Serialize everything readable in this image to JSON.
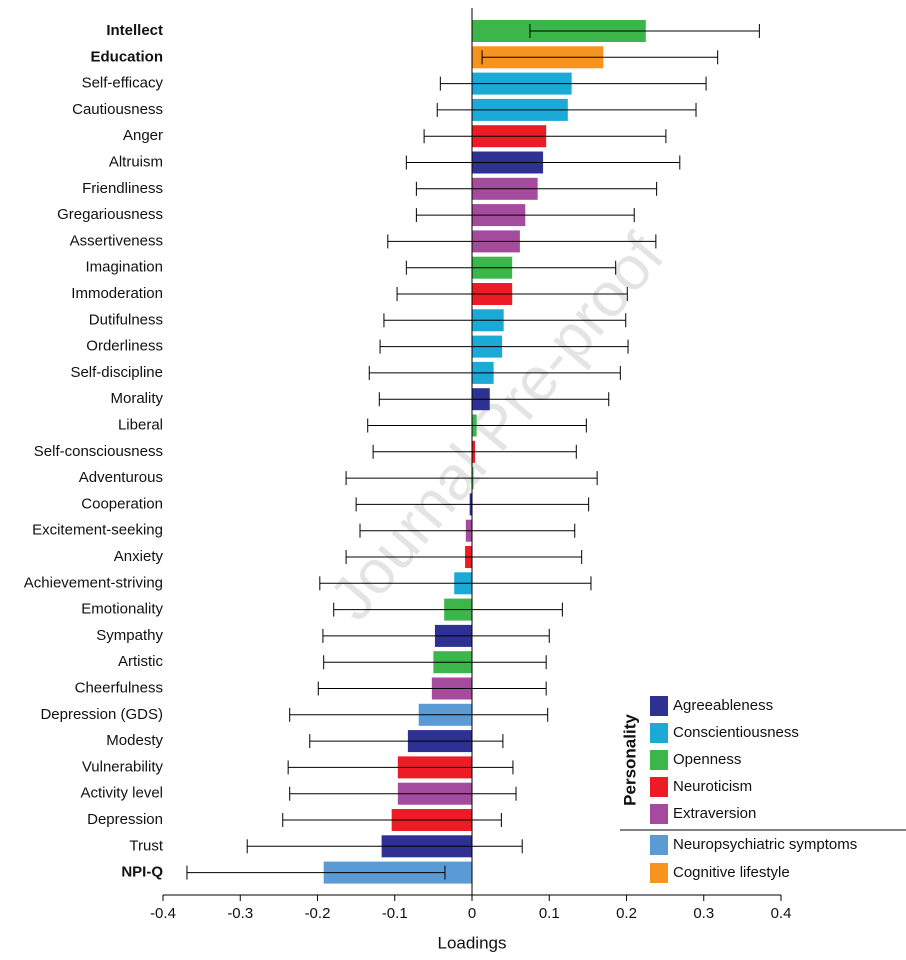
{
  "chart_data": {
    "type": "bar",
    "orientation": "horizontal",
    "xlabel": "Loadings",
    "watermark": "Journal Pre-proof",
    "categories": [
      "Intellect",
      "Education",
      "Self-efficacy",
      "Cautiousness",
      "Anger",
      "Altruism",
      "Friendliness",
      "Gregariousness",
      "Assertiveness",
      "Imagination",
      "Immoderation",
      "Dutifulness",
      "Orderliness",
      "Self-discipline",
      "Morality",
      "Liberal",
      "Self-consciousness",
      "Adventurous",
      "Cooperation",
      "Excitement-seeking",
      "Anxiety",
      "Achievement-striving",
      "Emotionality",
      "Sympathy",
      "Artistic",
      "Cheerfulness",
      "Depression (GDS)",
      "Modesty",
      "Vulnerability",
      "Activity level",
      "Depression",
      "Trust",
      "NPI-Q"
    ],
    "bold_categories": [
      0,
      1,
      32
    ],
    "values": [
      0.225,
      0.17,
      0.129,
      0.124,
      0.096,
      0.092,
      0.085,
      0.069,
      0.062,
      0.052,
      0.052,
      0.041,
      0.039,
      0.028,
      0.023,
      0.006,
      0.004,
      0.002,
      -0.003,
      -0.008,
      -0.009,
      -0.023,
      -0.036,
      -0.048,
      -0.05,
      -0.052,
      -0.069,
      -0.083,
      -0.096,
      -0.096,
      -0.104,
      -0.117,
      -0.192
    ],
    "ci_low": [
      0.075,
      0.013,
      -0.041,
      -0.045,
      -0.062,
      -0.085,
      -0.072,
      -0.072,
      -0.109,
      -0.085,
      -0.097,
      -0.114,
      -0.119,
      -0.133,
      -0.12,
      -0.135,
      -0.128,
      -0.163,
      -0.15,
      -0.145,
      -0.163,
      -0.197,
      -0.179,
      -0.193,
      -0.192,
      -0.199,
      -0.236,
      -0.21,
      -0.238,
      -0.236,
      -0.245,
      -0.291,
      -0.369
    ],
    "ci_high": [
      0.372,
      0.318,
      0.303,
      0.29,
      0.251,
      0.269,
      0.239,
      0.21,
      0.238,
      0.186,
      0.201,
      0.199,
      0.202,
      0.192,
      0.177,
      0.148,
      0.135,
      0.162,
      0.151,
      0.133,
      0.142,
      0.154,
      0.117,
      0.1,
      0.096,
      0.096,
      0.098,
      0.04,
      0.053,
      0.057,
      0.038,
      0.065,
      -0.035
    ],
    "groups": [
      2,
      6,
      1,
      1,
      3,
      0,
      4,
      4,
      4,
      2,
      3,
      1,
      1,
      1,
      0,
      2,
      3,
      2,
      0,
      4,
      3,
      1,
      2,
      0,
      2,
      4,
      5,
      0,
      3,
      4,
      3,
      0,
      5
    ],
    "legend_title": "Personality",
    "legend": [
      {
        "name": "Agreeableness",
        "color": "#2e3192"
      },
      {
        "name": "Conscientiousness",
        "color": "#1ba9d6"
      },
      {
        "name": "Openness",
        "color": "#3cb54a"
      },
      {
        "name": "Neuroticism",
        "color": "#ed1c24"
      },
      {
        "name": "Extraversion",
        "color": "#a54b9e"
      },
      {
        "name": "Neuropsychiatric symptoms",
        "color": "#5b9bd5"
      },
      {
        "name": "Cognitive lifestyle",
        "color": "#f7941d"
      }
    ],
    "xlim": [
      -0.4,
      0.4
    ],
    "xticks": [
      -0.4,
      -0.3,
      -0.2,
      -0.1,
      0,
      0.1,
      0.2,
      0.3,
      0.4
    ]
  }
}
